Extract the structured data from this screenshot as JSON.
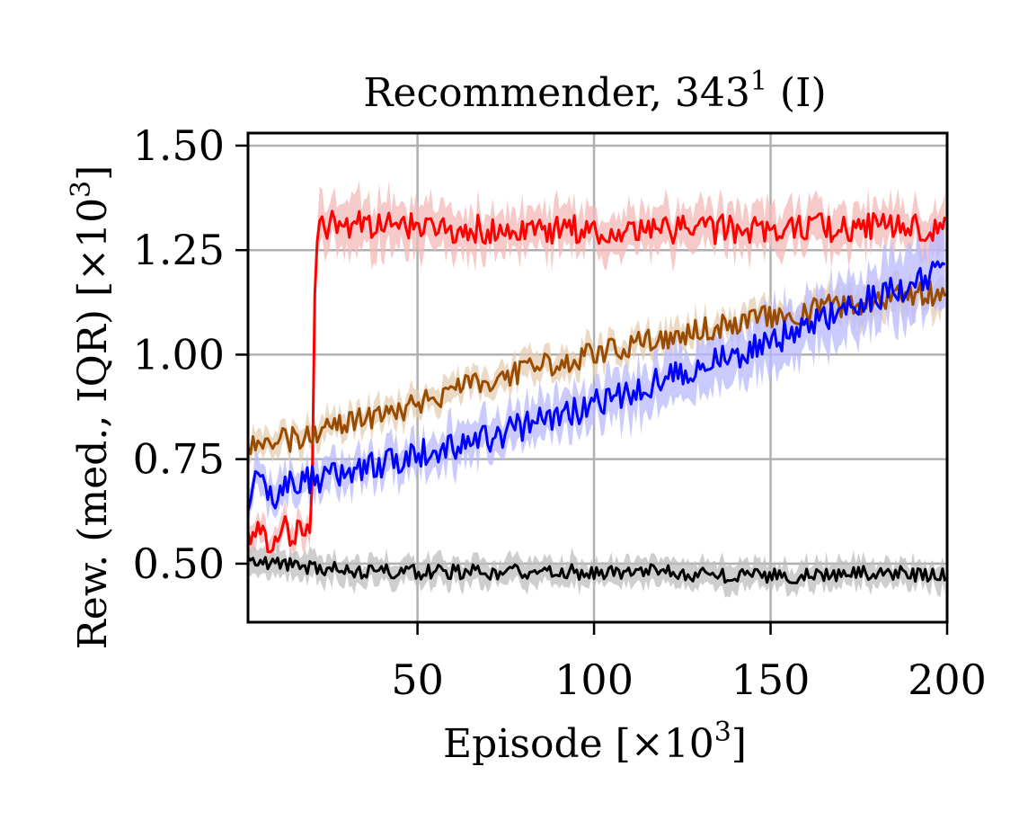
{
  "chart_data": {
    "type": "line",
    "title": "Recommender, 343",
    "title_superscript": "1",
    "title_suffix": " (I)",
    "xlabel": "Episode [×10",
    "xlabel_exponent": "3",
    "xlabel_suffix": "]",
    "ylabel": "Rew. (med., IQR) [×10",
    "ylabel_exponent": "3",
    "ylabel_suffix": "]",
    "xlim": [
      2,
      200
    ],
    "ylim": [
      0.36,
      1.53
    ],
    "xticks": [
      50,
      100,
      150,
      200
    ],
    "xtick_labels": [
      "50",
      "100",
      "150",
      "200"
    ],
    "yticks": [
      0.5,
      0.75,
      1.0,
      1.25,
      1.5
    ],
    "ytick_labels": [
      "0.50",
      "0.75",
      "1.00",
      "1.25",
      "1.50"
    ],
    "grid": true,
    "colors": {
      "red": "#ff0000",
      "red_band": "#f4b8b8",
      "brown": "#994c00",
      "brown_band": "#e3ccb0",
      "blue": "#0000ff",
      "blue_band": "#b8b8ff",
      "black": "#000000",
      "black_band": "#bdbdbd",
      "grid": "#b0b0b0"
    },
    "series": [
      {
        "color_key": "red",
        "x": [
          2,
          5,
          8,
          12,
          16,
          19,
          20,
          21,
          22,
          30,
          40,
          60,
          80,
          100,
          120,
          140,
          160,
          180,
          200
        ],
        "values": [
          0.58,
          0.57,
          0.56,
          0.58,
          0.57,
          0.58,
          0.58,
          1.21,
          1.31,
          1.31,
          1.31,
          1.3,
          1.3,
          1.3,
          1.3,
          1.3,
          1.3,
          1.31,
          1.3
        ],
        "iqr_width": [
          0.03,
          0.03,
          0.03,
          0.03,
          0.03,
          0.03,
          0.03,
          0.06,
          0.06,
          0.06,
          0.06,
          0.05,
          0.05,
          0.05,
          0.05,
          0.05,
          0.05,
          0.05,
          0.05
        ]
      },
      {
        "color_key": "brown",
        "x": [
          2,
          10,
          20,
          30,
          40,
          50,
          60,
          70,
          80,
          90,
          100,
          110,
          120,
          130,
          140,
          150,
          160,
          170,
          180,
          190,
          200
        ],
        "values": [
          0.78,
          0.79,
          0.81,
          0.84,
          0.86,
          0.88,
          0.91,
          0.94,
          0.96,
          0.98,
          1.0,
          1.02,
          1.04,
          1.06,
          1.07,
          1.09,
          1.1,
          1.12,
          1.13,
          1.14,
          1.15
        ],
        "iqr_width": [
          0.03,
          0.03,
          0.03,
          0.03,
          0.03,
          0.03,
          0.03,
          0.03,
          0.03,
          0.03,
          0.03,
          0.03,
          0.03,
          0.03,
          0.03,
          0.03,
          0.03,
          0.04,
          0.04,
          0.04,
          0.04
        ]
      },
      {
        "color_key": "blue",
        "x": [
          2,
          4,
          7,
          10,
          12,
          15,
          20,
          30,
          40,
          50,
          60,
          70,
          80,
          90,
          100,
          110,
          120,
          130,
          140,
          150,
          160,
          170,
          180,
          190,
          200
        ],
        "values": [
          0.62,
          0.74,
          0.67,
          0.63,
          0.68,
          0.69,
          0.7,
          0.72,
          0.74,
          0.76,
          0.78,
          0.8,
          0.83,
          0.85,
          0.88,
          0.91,
          0.94,
          0.97,
          1.0,
          1.03,
          1.07,
          1.1,
          1.14,
          1.17,
          1.2
        ],
        "iqr_width": [
          0.04,
          0.04,
          0.04,
          0.04,
          0.04,
          0.04,
          0.04,
          0.04,
          0.04,
          0.04,
          0.05,
          0.05,
          0.05,
          0.05,
          0.05,
          0.06,
          0.06,
          0.06,
          0.06,
          0.07,
          0.07,
          0.07,
          0.07,
          0.08,
          0.08
        ]
      },
      {
        "color_key": "black",
        "x": [
          2,
          20,
          40,
          60,
          80,
          100,
          120,
          140,
          160,
          180,
          200
        ],
        "values": [
          0.51,
          0.49,
          0.48,
          0.48,
          0.48,
          0.48,
          0.48,
          0.47,
          0.47,
          0.48,
          0.47
        ],
        "iqr_width": [
          0.03,
          0.03,
          0.03,
          0.03,
          0.03,
          0.03,
          0.03,
          0.03,
          0.03,
          0.03,
          0.03
        ]
      }
    ]
  }
}
